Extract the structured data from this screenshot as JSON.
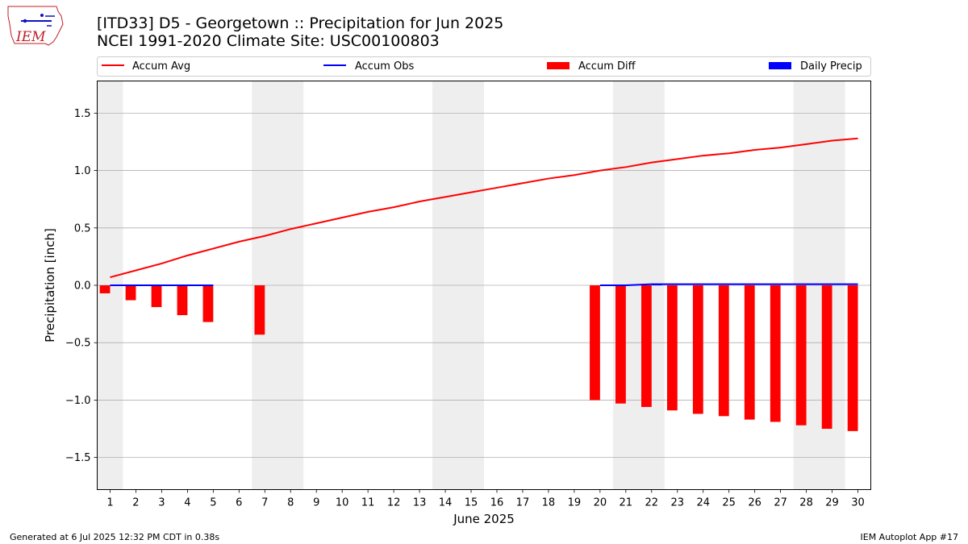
{
  "header": {
    "title_line1": "[ITD33] D5 - Georgetown  :: Precipitation for Jun 2025",
    "title_line2": "NCEI 1991-2020 Climate Site: USC00100803",
    "logo_text": "IEM"
  },
  "footer": {
    "generated": "Generated at 6 Jul 2025 12:32 PM CDT in 0.38s",
    "app": "IEM Autoplot App #17"
  },
  "colors": {
    "avg": "#ff0000",
    "obs": "#0000ff",
    "diff": "#ff0000",
    "daily": "#0000ff",
    "weekend_band": "#eeeeee",
    "grid": "#b0b0b0"
  },
  "chart_data": {
    "type": "bar",
    "xlabel": "June 2025",
    "ylabel": "Precipitation [inch]",
    "xlim": [
      0.5,
      30.5
    ],
    "ylim": [
      -1.78,
      1.78
    ],
    "yticks": [
      -1.5,
      -1.0,
      -0.5,
      0.0,
      0.5,
      1.0,
      1.5
    ],
    "ytick_labels": [
      "−1.5",
      "−1.0",
      "−0.5",
      "0.0",
      "0.5",
      "1.0",
      "1.5"
    ],
    "xticks": [
      1,
      2,
      3,
      4,
      5,
      6,
      7,
      8,
      9,
      10,
      11,
      12,
      13,
      14,
      15,
      16,
      17,
      18,
      19,
      20,
      21,
      22,
      23,
      24,
      25,
      26,
      27,
      28,
      29,
      30
    ],
    "grid": "y",
    "legend_placement": "top",
    "weekend_bands": [
      [
        0.5,
        1.5
      ],
      [
        6.5,
        8.5
      ],
      [
        13.5,
        15.5
      ],
      [
        20.5,
        22.5
      ],
      [
        27.5,
        29.5
      ]
    ],
    "legend": [
      {
        "label": "Accum Avg",
        "kind": "line",
        "color": "#ff0000"
      },
      {
        "label": "Accum Obs",
        "kind": "line",
        "color": "#0000ff"
      },
      {
        "label": "Accum Diff",
        "kind": "bar",
        "color": "#ff0000"
      },
      {
        "label": "Daily Precip",
        "kind": "bar",
        "color": "#0000ff"
      }
    ],
    "accum_avg": {
      "days": [
        1,
        2,
        3,
        4,
        5,
        6,
        7,
        8,
        9,
        10,
        11,
        12,
        13,
        14,
        15,
        16,
        17,
        18,
        19,
        20,
        21,
        22,
        23,
        24,
        25,
        26,
        27,
        28,
        29,
        30
      ],
      "values": [
        0.07,
        0.13,
        0.19,
        0.26,
        0.32,
        0.38,
        0.43,
        0.49,
        0.54,
        0.59,
        0.64,
        0.68,
        0.73,
        0.77,
        0.81,
        0.85,
        0.89,
        0.93,
        0.96,
        1.0,
        1.03,
        1.07,
        1.1,
        1.13,
        1.15,
        1.18,
        1.2,
        1.23,
        1.26,
        1.28
      ]
    },
    "accum_obs": [
      {
        "days": [
          1,
          2,
          3,
          4,
          5
        ],
        "values": [
          0.0,
          0.0,
          0.0,
          0.0,
          0.0
        ]
      },
      {
        "days": [
          20,
          21,
          22,
          23,
          24,
          25,
          26,
          27,
          28,
          29,
          30
        ],
        "values": [
          0.0,
          0.0,
          0.01,
          0.01,
          0.01,
          0.01,
          0.01,
          0.01,
          0.01,
          0.01,
          0.01
        ]
      }
    ],
    "accum_diff": {
      "days": [
        1,
        2,
        3,
        4,
        5,
        7,
        20,
        21,
        22,
        23,
        24,
        25,
        26,
        27,
        28,
        29,
        30
      ],
      "values": [
        -0.07,
        -0.13,
        -0.19,
        -0.26,
        -0.32,
        -0.43,
        -1.0,
        -1.03,
        -1.06,
        -1.09,
        -1.12,
        -1.14,
        -1.17,
        -1.19,
        -1.22,
        -1.25,
        -1.27
      ]
    },
    "daily_precip": {
      "days": [
        22
      ],
      "values": [
        0.01
      ]
    }
  }
}
